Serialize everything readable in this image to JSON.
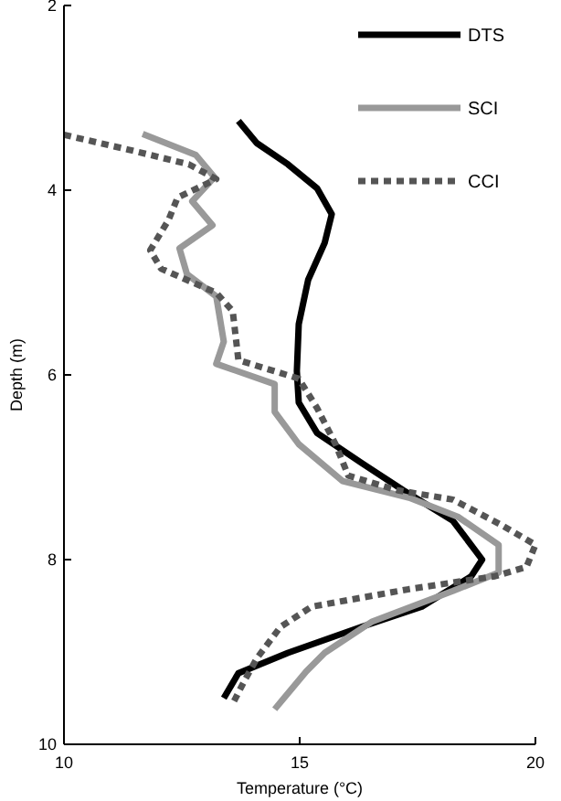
{
  "chart_data": {
    "type": "line",
    "xlabel": "Temperature (°C)",
    "ylabel": "Depth (m)",
    "xlim": [
      10,
      20
    ],
    "xticks": [
      10,
      15,
      20
    ],
    "ylim": [
      10,
      2
    ],
    "yticks": [
      2,
      4,
      6,
      8,
      10
    ],
    "grid": false,
    "legend": "top right",
    "marker": "none",
    "series": [
      {
        "name": "DTS",
        "color": "#000000",
        "line_style": "solid",
        "x": [
          13.7,
          14.09,
          14.75,
          15.37,
          15.68,
          15.53,
          15.18,
          14.98,
          14.94,
          14.98,
          15.37,
          16.3,
          17.2,
          18.25,
          18.87,
          18.64,
          17.59,
          16.3,
          14.75,
          13.7,
          13.39
        ],
        "values": [
          3.25,
          3.49,
          3.72,
          3.98,
          4.26,
          4.57,
          4.97,
          5.45,
          5.96,
          6.3,
          6.63,
          6.95,
          7.25,
          7.58,
          8.0,
          8.18,
          8.51,
          8.73,
          9.01,
          9.23,
          9.5
        ]
      },
      {
        "name": "SCI",
        "color": "#999999",
        "line_style": "solid",
        "x": [
          11.67,
          12.8,
          13.19,
          12.72,
          13.15,
          12.45,
          12.61,
          13.23,
          13.39,
          13.23,
          14.47,
          14.47,
          14.98,
          15.91,
          17.32,
          18.37,
          19.22,
          19.22,
          18.25,
          16.54,
          15.53,
          15.14,
          14.47
        ],
        "values": [
          3.39,
          3.62,
          3.86,
          4.12,
          4.38,
          4.63,
          4.91,
          5.15,
          5.64,
          5.88,
          6.1,
          6.4,
          6.75,
          7.15,
          7.33,
          7.54,
          7.84,
          8.14,
          8.34,
          8.67,
          9.01,
          9.21,
          9.62
        ]
      },
      {
        "name": "CCI",
        "color": "#555555",
        "line_style": "dotted",
        "x": [
          10.0,
          11.36,
          12.65,
          13.23,
          12.41,
          12.22,
          11.83,
          12.06,
          13.23,
          13.58,
          13.7,
          14.98,
          15.37,
          15.76,
          16.03,
          17.08,
          18.25,
          19.26,
          20.0,
          19.81,
          19.14,
          17.32,
          15.25,
          14.59,
          14.09,
          13.81,
          13.58
        ],
        "values": [
          3.4,
          3.56,
          3.72,
          3.88,
          4.08,
          4.32,
          4.65,
          4.85,
          5.11,
          5.31,
          5.84,
          6.04,
          6.36,
          6.75,
          7.09,
          7.25,
          7.35,
          7.62,
          7.84,
          8.08,
          8.18,
          8.32,
          8.51,
          8.73,
          9.07,
          9.33,
          9.56
        ]
      }
    ]
  }
}
